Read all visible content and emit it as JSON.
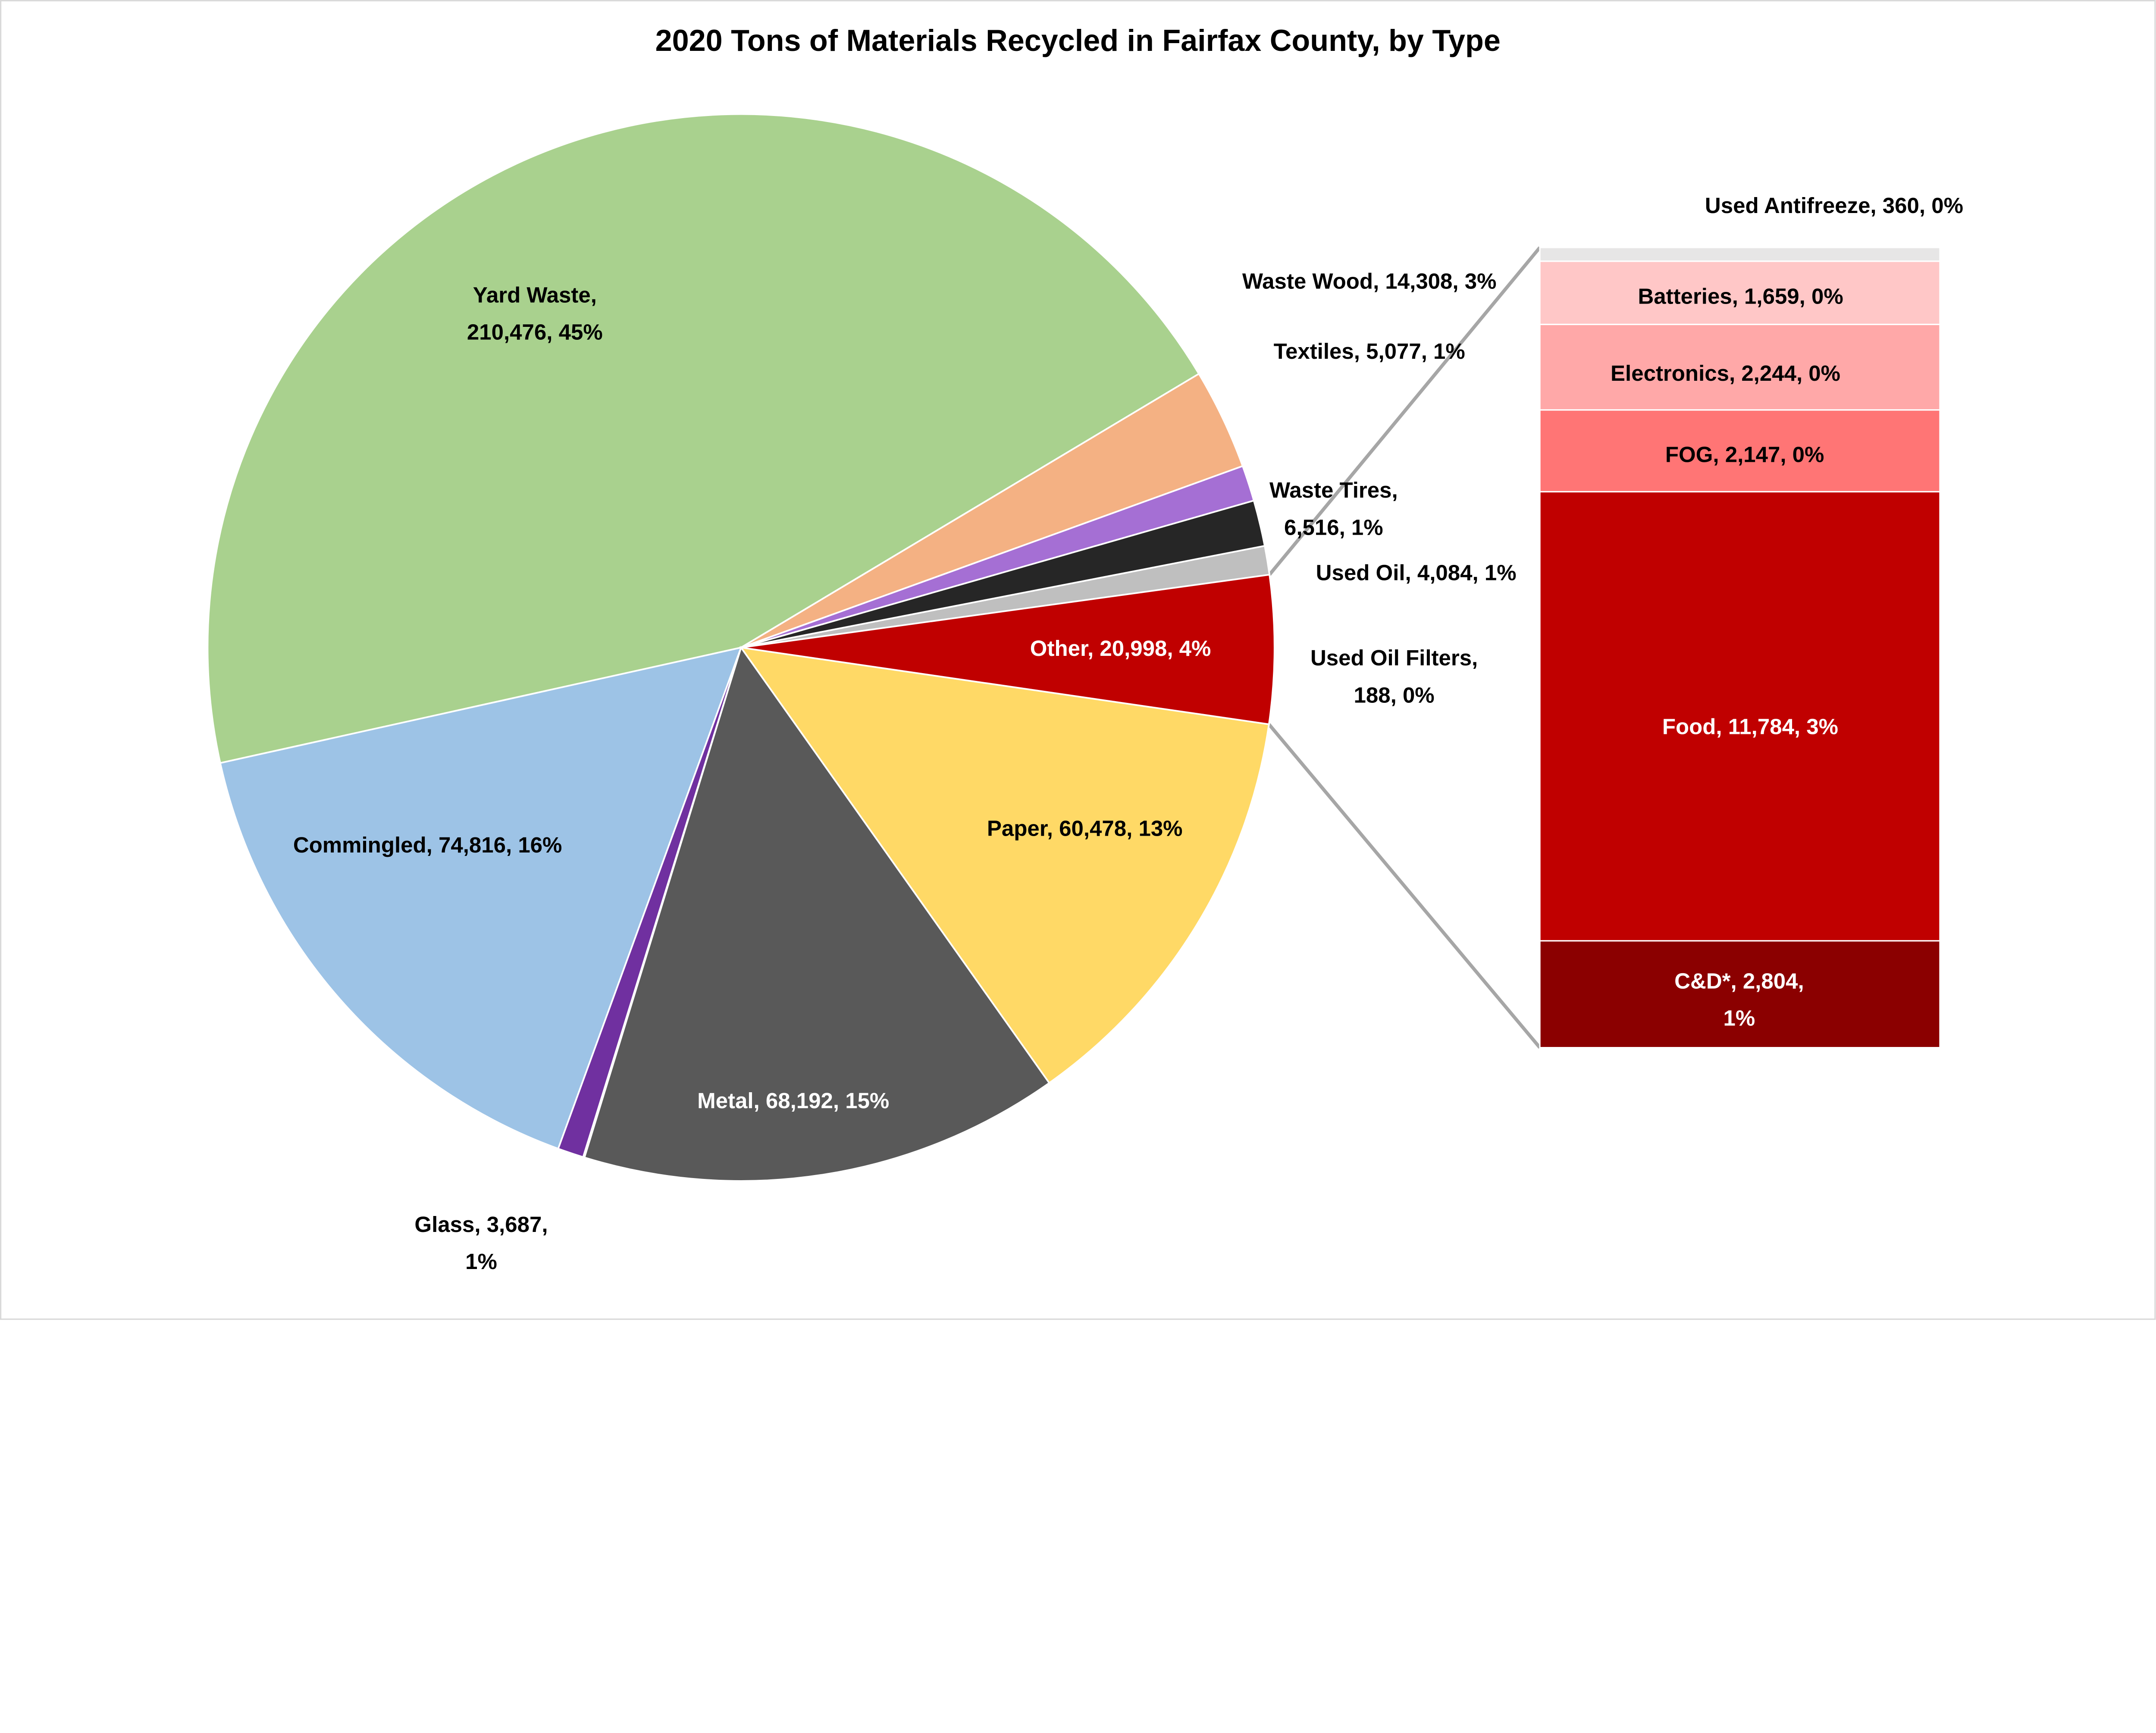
{
  "chart_data": {
    "type": "pie",
    "subtype": "pie-of-bar",
    "title": "2020 Tons of Materials Recycled in Fairfax County, by Type",
    "pie": [
      {
        "name": "Yard Waste",
        "value": 210476,
        "percent": "45%",
        "color": "#a9d18e",
        "label": [
          "Yard Waste,",
          "210,476, 45%"
        ],
        "label_color": "#000000"
      },
      {
        "name": "Waste Wood",
        "value": 14308,
        "percent": "3%",
        "color": "#f4b183",
        "label": [
          "Waste Wood, 14,308, 3%"
        ],
        "label_color": "#000000"
      },
      {
        "name": "Textiles",
        "value": 5077,
        "percent": "1%",
        "color": "#a56fd4",
        "label": [
          "Textiles, 5,077, 1%"
        ],
        "label_color": "#000000"
      },
      {
        "name": "Waste Tires",
        "value": 6516,
        "percent": "1%",
        "color": "#262626",
        "label": [
          "Waste Tires,",
          "6,516, 1%"
        ],
        "label_color": "#000000"
      },
      {
        "name": "Used Oil",
        "value": 4084,
        "percent": "1%",
        "color": "#bfbfbf",
        "label": [
          "Used Oil, 4,084, 1%"
        ],
        "label_color": "#000000"
      },
      {
        "name": "Other",
        "value": 20998,
        "percent": "4%",
        "color": "#c00000",
        "label": [
          "Other, 20,998, 4%"
        ],
        "label_color": "#ffffff"
      },
      {
        "name": "Paper",
        "value": 60478,
        "percent": "13%",
        "color": "#ffd966",
        "label": [
          "Paper, 60,478, 13%"
        ],
        "label_color": "#000000"
      },
      {
        "name": "Metal",
        "value": 68192,
        "percent": "15%",
        "color": "#595959",
        "label": [
          "Metal, 68,192, 15%"
        ],
        "label_color": "#ffffff"
      },
      {
        "name": "Used Oil Filters",
        "value": 188,
        "percent": "0%",
        "color": "#a6a6a6",
        "label": [
          "Used Oil Filters,",
          "188, 0%"
        ],
        "label_color": "#000000"
      },
      {
        "name": "Glass",
        "value": 3687,
        "percent": "1%",
        "color": "#7030a0",
        "label": [
          "Glass, 3,687,",
          "1%"
        ],
        "label_color": "#000000"
      },
      {
        "name": "Commingled",
        "value": 74816,
        "percent": "16%",
        "color": "#9dc3e6",
        "label": [
          "Commingled, 74,816, 16%"
        ],
        "label_color": "#000000"
      }
    ],
    "bar": [
      {
        "name": "C&D*",
        "value": 2804,
        "percent": "1%",
        "color": "#8b0000",
        "label": [
          "C&D*, 2,804,",
          "1%"
        ],
        "label_color": "#ffffff"
      },
      {
        "name": "Food",
        "value": 11784,
        "percent": "3%",
        "color": "#c00000",
        "label": [
          "Food, 11,784, 3%"
        ],
        "label_color": "#ffffff"
      },
      {
        "name": "FOG",
        "value": 2147,
        "percent": "0%",
        "color": "#ff7575",
        "label": [
          "FOG, 2,147, 0%"
        ],
        "label_color": "#000000"
      },
      {
        "name": "Electronics",
        "value": 2244,
        "percent": "0%",
        "color": "#ffa8a8",
        "label": [
          "Electronics, 2,244, 0%"
        ],
        "label_color": "#000000"
      },
      {
        "name": "Batteries",
        "value": 1659,
        "percent": "0%",
        "color": "#ffc7c7",
        "label": [
          "Batteries, 1,659, 0%"
        ],
        "label_color": "#000000"
      },
      {
        "name": "Used Antifreeze",
        "value": 360,
        "percent": "0%",
        "color": "#e7e6e6",
        "label": [
          "Used Antifreeze, 360, 0%"
        ],
        "label_color": "#000000"
      }
    ],
    "legend": "none"
  }
}
